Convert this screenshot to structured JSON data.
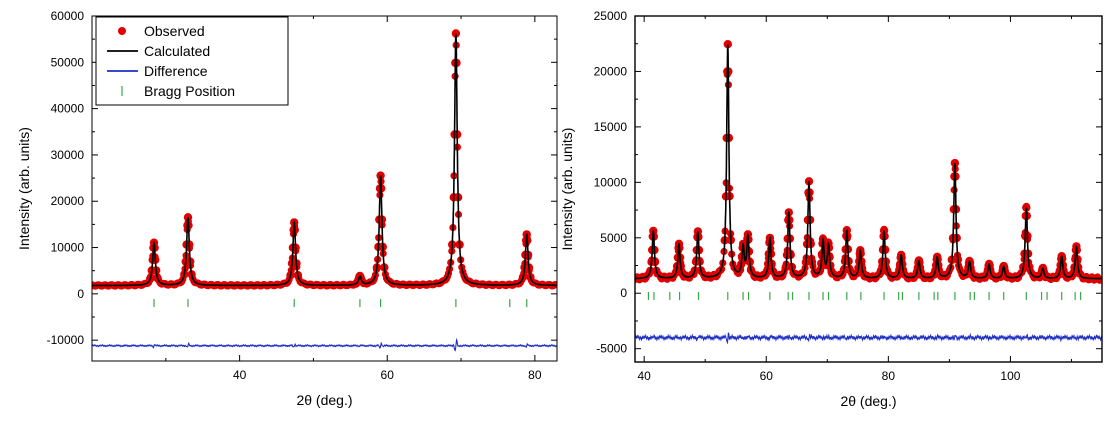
{
  "chart_data": [
    {
      "type": "scatter",
      "xlabel": "2θ (deg.)",
      "ylabel": "Intensity (arb. units)",
      "xlim": [
        20,
        83
      ],
      "ylim": [
        -14500,
        60000
      ],
      "xticks": [
        40,
        60,
        80
      ],
      "yticks": [
        -10000,
        0,
        10000,
        20000,
        30000,
        40000,
        50000,
        60000
      ],
      "background": 1800,
      "difference_offset": -11200,
      "legend": {
        "placement": "top-left",
        "items": [
          {
            "label": "Observed",
            "style": "dot",
            "color": "#e00000"
          },
          {
            "label": "Calculated",
            "style": "line",
            "color": "#000000"
          },
          {
            "label": "Difference",
            "style": "line",
            "color": "#1f2fc4"
          },
          {
            "label": "Bragg Position",
            "style": "tick",
            "color": "#3aa64a"
          }
        ]
      },
      "peaks": [
        {
          "x": 28.4,
          "height": 11000
        },
        {
          "x": 33.0,
          "height": 16500
        },
        {
          "x": 47.4,
          "height": 15400
        },
        {
          "x": 56.3,
          "height": 3700
        },
        {
          "x": 59.1,
          "height": 25500
        },
        {
          "x": 69.3,
          "height": 56200
        },
        {
          "x": 78.9,
          "height": 12800
        }
      ],
      "bragg_positions": [
        28.4,
        33.0,
        47.4,
        56.3,
        59.1,
        69.3,
        76.6,
        78.9
      ],
      "series": [
        {
          "name": "Observed",
          "color": "#e00000"
        },
        {
          "name": "Calculated",
          "color": "#000000"
        },
        {
          "name": "Difference",
          "color": "#1f2fc4"
        },
        {
          "name": "Bragg Position",
          "color": "#3aa64a"
        }
      ]
    },
    {
      "type": "scatter",
      "xlabel": "2θ (deg.)",
      "ylabel": "Intensity (arb. units)",
      "xlim": [
        38.5,
        115
      ],
      "ylim": [
        -6200,
        25000
      ],
      "xticks": [
        40,
        60,
        80,
        100
      ],
      "yticks": [
        -5000,
        0,
        5000,
        10000,
        15000,
        20000,
        25000
      ],
      "background": 1300,
      "difference_offset": -4000,
      "peaks": [
        {
          "x": 41.5,
          "height": 5600
        },
        {
          "x": 45.7,
          "height": 4400
        },
        {
          "x": 48.8,
          "height": 5500
        },
        {
          "x": 53.7,
          "height": 22400
        },
        {
          "x": 56.2,
          "height": 4000
        },
        {
          "x": 57.0,
          "height": 5000
        },
        {
          "x": 60.6,
          "height": 4900
        },
        {
          "x": 63.7,
          "height": 7200
        },
        {
          "x": 67.0,
          "height": 10000
        },
        {
          "x": 69.3,
          "height": 4600
        },
        {
          "x": 70.2,
          "height": 4200
        },
        {
          "x": 73.2,
          "height": 5600
        },
        {
          "x": 75.4,
          "height": 3800
        },
        {
          "x": 79.3,
          "height": 5600
        },
        {
          "x": 82.1,
          "height": 3400
        },
        {
          "x": 85.0,
          "height": 2900
        },
        {
          "x": 88.0,
          "height": 3200
        },
        {
          "x": 90.9,
          "height": 11700
        },
        {
          "x": 93.3,
          "height": 2800
        },
        {
          "x": 96.5,
          "height": 2600
        },
        {
          "x": 98.9,
          "height": 2400
        },
        {
          "x": 102.6,
          "height": 7700
        },
        {
          "x": 105.3,
          "height": 2200
        },
        {
          "x": 108.4,
          "height": 3300
        },
        {
          "x": 110.8,
          "height": 4200
        }
      ],
      "bragg_positions": [
        40.7,
        41.6,
        44.2,
        45.8,
        48.9,
        53.7,
        56.2,
        57.1,
        60.6,
        63.6,
        64.3,
        67.0,
        69.3,
        70.2,
        73.2,
        75.5,
        79.3,
        81.7,
        82.3,
        85.0,
        87.5,
        88.1,
        90.9,
        93.4,
        94.1,
        96.5,
        98.9,
        102.6,
        105.1,
        106.0,
        108.4,
        110.6,
        111.5
      ]
    }
  ]
}
